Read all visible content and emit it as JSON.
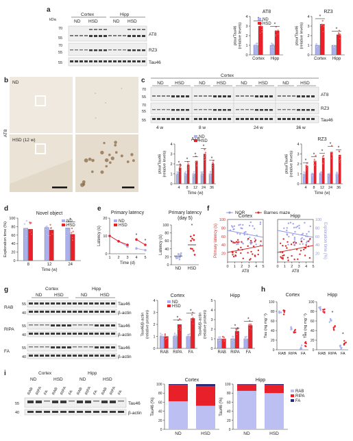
{
  "colors": {
    "nd": "#aab0ee",
    "hsd": "#e8202a",
    "nor": "#8f94e6",
    "barnes": "#d42a2a",
    "scale": "#111111"
  },
  "panels": {
    "a": {
      "label": "a",
      "kda": "kDa",
      "regions": [
        "Cortex",
        "Hipp"
      ],
      "groups": [
        "ND",
        "HSD",
        "ND",
        "HSD"
      ],
      "markers": [
        {
          "kda": "70"
        },
        {
          "kda": "55"
        },
        {
          "kda": "70"
        },
        {
          "kda": "55"
        },
        {
          "kda": "55"
        }
      ],
      "blots": [
        "AT8",
        "RZ3",
        "Tau46"
      ]
    },
    "b": {
      "label": "b",
      "conditions": [
        "ND",
        "HSD (12 w)"
      ],
      "stain": "AT8"
    },
    "c": {
      "label": "c",
      "region": "Cortex",
      "groups": [
        "ND",
        "HSD"
      ],
      "timepoints": [
        "4 w",
        "8 w",
        "24 w",
        "36 w"
      ],
      "markers": [
        "70",
        "55",
        "70",
        "55",
        "55"
      ],
      "blots": [
        "AT8",
        "RZ3",
        "Tau46"
      ]
    },
    "d": {
      "label": "d"
    },
    "e": {
      "label": "e"
    },
    "f": {
      "label": "f"
    },
    "g": {
      "label": "g",
      "regions": [
        "Cortex",
        "Hipp"
      ],
      "groups": [
        "ND",
        "HSD",
        "ND",
        "HSD"
      ],
      "rows": [
        {
          "name": "RAB",
          "blots": [
            "Tau46",
            "β-actin"
          ]
        },
        {
          "name": "RIPA",
          "blots": [
            "Tau46",
            "β-actin"
          ]
        },
        {
          "name": "FA",
          "blots": [
            "Tau46",
            "β-actin"
          ]
        }
      ],
      "markers": [
        "55",
        "40",
        "55",
        "40",
        "55",
        "40"
      ]
    },
    "h": {
      "label": "h"
    },
    "i": {
      "label": "i",
      "regions": [
        "Cortex",
        "Hipp"
      ],
      "groups": [
        "ND",
        "HSD",
        "ND",
        "HSD"
      ],
      "lanes": [
        "RAB",
        "RIPA",
        "FA",
        "RAB",
        "RIPA",
        "FA",
        "RAB",
        "RIPA",
        "FA",
        "RAB",
        "RIPA",
        "FA"
      ],
      "markers": [
        "55",
        "40"
      ],
      "blots": [
        "Tau46",
        "β-actin"
      ]
    }
  },
  "chart_data": [
    {
      "id": "a-AT8",
      "type": "bar",
      "title": "AT8",
      "ylabel": "ptau/Tau46\n(relative levels)",
      "categories": [
        "Cortex",
        "Hipp"
      ],
      "series": [
        {
          "name": "ND",
          "values": [
            1.0,
            1.0
          ]
        },
        {
          "name": "HSD",
          "values": [
            3.0,
            2.5
          ]
        }
      ],
      "ylim": [
        0,
        4
      ],
      "yticks": [
        0,
        1,
        2,
        3,
        4
      ],
      "sig": [
        "*",
        "*"
      ]
    },
    {
      "id": "a-RZ3",
      "type": "bar",
      "title": "RZ3",
      "ylabel": "ptau/Tau46\n(relative levels)",
      "categories": [
        "Cortex",
        "Hipp"
      ],
      "series": [
        {
          "name": "ND",
          "values": [
            1.0,
            1.0
          ]
        },
        {
          "name": "HSD",
          "values": [
            3.2,
            2.1
          ]
        }
      ],
      "ylim": [
        0,
        4
      ],
      "yticks": [
        0,
        1,
        2,
        3,
        4
      ],
      "sig": [
        "*",
        "*"
      ]
    },
    {
      "id": "c-AT8",
      "type": "bar",
      "title": "AT8",
      "xlabel": "Time (w)",
      "ylabel": "ptau/Tau46\n(relative levels)",
      "categories": [
        "4",
        "8",
        "12",
        "24",
        "36"
      ],
      "series": [
        {
          "name": "ND",
          "values": [
            1.0,
            1.0,
            1.0,
            1.0,
            1.0
          ]
        },
        {
          "name": "HSD",
          "values": [
            1.6,
            1.9,
            2.3,
            3.0,
            2.0
          ]
        }
      ],
      "ylim": [
        0,
        4
      ],
      "yticks": [
        0,
        1,
        2,
        3,
        4
      ],
      "sig": [
        "*",
        "*",
        "*",
        "*",
        "*"
      ]
    },
    {
      "id": "c-RZ3",
      "type": "bar",
      "title": "RZ3",
      "xlabel": "Time (w)",
      "ylabel": "ptau/Tau46\n(relative levels)",
      "categories": [
        "4",
        "8",
        "12",
        "24",
        "36"
      ],
      "series": [
        {
          "name": "ND",
          "values": [
            1.0,
            1.0,
            1.0,
            1.0,
            1.0
          ]
        },
        {
          "name": "HSD",
          "values": [
            1.8,
            2.3,
            2.6,
            3.2,
            2.9
          ]
        }
      ],
      "ylim": [
        0,
        4
      ],
      "yticks": [
        0,
        1,
        2,
        3,
        4
      ],
      "sig": [
        "*",
        "*",
        "*",
        "*",
        "*"
      ]
    },
    {
      "id": "d",
      "type": "bar",
      "title": "Novel object",
      "xlabel": "Time (w)",
      "ylabel": "Exploration time (%)",
      "categories": [
        "8",
        "12",
        "24"
      ],
      "series": [
        {
          "name": "ND",
          "values": [
            76,
            78,
            77
          ]
        },
        {
          "name": "HSD",
          "values": [
            74,
            72,
            62
          ]
        }
      ],
      "ylim": [
        0,
        100
      ],
      "yticks": [
        0,
        20,
        40,
        60,
        80,
        100
      ],
      "sig": [
        "",
        "",
        "*"
      ]
    },
    {
      "id": "e-left",
      "type": "line",
      "title": "Primary latency",
      "xlabel": "Time (d)",
      "ylabel": "Latency (s)",
      "x": [
        1,
        2,
        3,
        4,
        5
      ],
      "series": [
        {
          "name": "ND",
          "values": [
            10,
            7,
            4,
            3,
            2
          ]
        },
        {
          "name": "HSD",
          "values": [
            10,
            7,
            5,
            8,
            5
          ]
        }
      ],
      "ylim": [
        0,
        20
      ],
      "yticks": [
        0,
        10,
        20
      ],
      "sig": [
        "",
        "",
        "",
        "*",
        "*"
      ]
    },
    {
      "id": "e-right",
      "type": "scatter",
      "title": "Primary latency\n(day 5)",
      "ylabel": "Latency (s)",
      "categories": [
        "ND",
        "HSD"
      ],
      "series": [
        {
          "name": "ND",
          "values": [
            22
          ]
        },
        {
          "name": "HSD",
          "values": [
            50
          ]
        }
      ],
      "ylim": [
        0,
        100
      ],
      "yticks": [
        0,
        20,
        40,
        60,
        80,
        100
      ],
      "sig": [
        "",
        "*"
      ]
    },
    {
      "id": "f-Cortex",
      "type": "scatter",
      "title": "Cortex",
      "xlabel": "AT8",
      "ylabel": "Primary latency (s)",
      "y2label": "Exploration time (%)",
      "series": [
        {
          "name": "NOR",
          "values": []
        },
        {
          "name": "Barnes maze",
          "values": []
        }
      ],
      "xlim": [
        0,
        5
      ],
      "ylim": [
        0,
        100
      ],
      "y2lim": [
        0,
        100
      ],
      "legend": "top"
    },
    {
      "id": "f-Hipp",
      "type": "scatter",
      "title": "Hipp",
      "xlabel": "AT8",
      "series": [
        {
          "name": "NOR",
          "values": []
        },
        {
          "name": "Barnes maze",
          "values": []
        }
      ],
      "xlim": [
        0,
        5
      ],
      "ylim": [
        0,
        100
      ]
    },
    {
      "id": "g-Cortex",
      "type": "bar",
      "title": "Cortex",
      "ylabel": "Tau46/β-actin\n(relative protein)",
      "categories": [
        "RAB",
        "RIPA",
        "FA"
      ],
      "series": [
        {
          "name": "ND",
          "values": [
            1.0,
            1.0,
            1.0
          ]
        },
        {
          "name": "HSD",
          "values": [
            1.0,
            2.0,
            2.5
          ]
        }
      ],
      "ylim": [
        0,
        4
      ],
      "yticks": [
        0,
        1,
        2,
        3,
        4
      ],
      "sig": [
        "",
        "*",
        "*"
      ]
    },
    {
      "id": "g-Hipp",
      "type": "bar",
      "title": "Hipp",
      "ylabel": "Tau46/β-actin\n(relative protein)",
      "categories": [
        "RAB",
        "RIPA",
        "FA"
      ],
      "series": [
        {
          "name": "ND",
          "values": [
            1.0,
            1.0,
            1.0
          ]
        },
        {
          "name": "HSD",
          "values": [
            1.0,
            1.8,
            2.4
          ]
        }
      ],
      "ylim": [
        0,
        5
      ],
      "yticks": [
        0,
        1,
        2,
        3,
        4,
        5
      ],
      "sig": [
        "",
        "*",
        "*"
      ]
    },
    {
      "id": "h-Cortex",
      "type": "scatter",
      "title": "Cortex",
      "ylabel": "Tau (ng mg⁻¹)",
      "categories": [
        "RAB",
        "RIPA",
        "FA"
      ],
      "series": [
        {
          "name": "ND",
          "values": [
            80,
            45,
            5
          ]
        },
        {
          "name": "HSD",
          "values": [
            78,
            40,
            12
          ]
        }
      ],
      "ylim": [
        0,
        100
      ],
      "yticks": [
        0,
        20,
        40,
        60,
        80,
        100
      ],
      "sig": [
        "",
        "",
        "*"
      ]
    },
    {
      "id": "h-Hipp",
      "type": "scatter",
      "title": "Hipp",
      "ylabel": "Tau (ng mg⁻¹)",
      "categories": [
        "RAB",
        "RIPA",
        "FA"
      ],
      "series": [
        {
          "name": "ND",
          "values": [
            85,
            60,
            5
          ]
        },
        {
          "name": "HSD",
          "values": [
            82,
            45,
            15
          ]
        }
      ],
      "ylim": [
        0,
        100
      ],
      "yticks": [
        0,
        20,
        40,
        60,
        80,
        100
      ],
      "sig": [
        "",
        "*",
        "*"
      ]
    },
    {
      "id": "i-Cortex",
      "type": "bar",
      "title": "Cortex",
      "ylabel": "Tau46 (%)",
      "categories": [
        "ND",
        "HSD"
      ],
      "series": [
        {
          "name": "RAB",
          "values": [
            62,
            52
          ]
        },
        {
          "name": "RIPA",
          "values": [
            36,
            43
          ]
        },
        {
          "name": "FA",
          "values": [
            2,
            5
          ]
        }
      ],
      "ylim": [
        0,
        100
      ],
      "yticks": [
        0,
        20,
        40,
        60,
        80,
        100
      ],
      "stacked": true
    },
    {
      "id": "i-Hipp",
      "type": "bar",
      "title": "Hipp",
      "ylabel": "Tau46 (%)",
      "categories": [
        "ND",
        "HSD"
      ],
      "series": [
        {
          "name": "RAB",
          "values": [
            85,
            80
          ]
        },
        {
          "name": "RIPA",
          "values": [
            14,
            18
          ]
        },
        {
          "name": "FA",
          "values": [
            1,
            2
          ]
        }
      ],
      "ylim": [
        0,
        100
      ],
      "yticks": [
        0,
        20,
        40,
        60,
        80,
        100
      ],
      "stacked": true
    }
  ]
}
